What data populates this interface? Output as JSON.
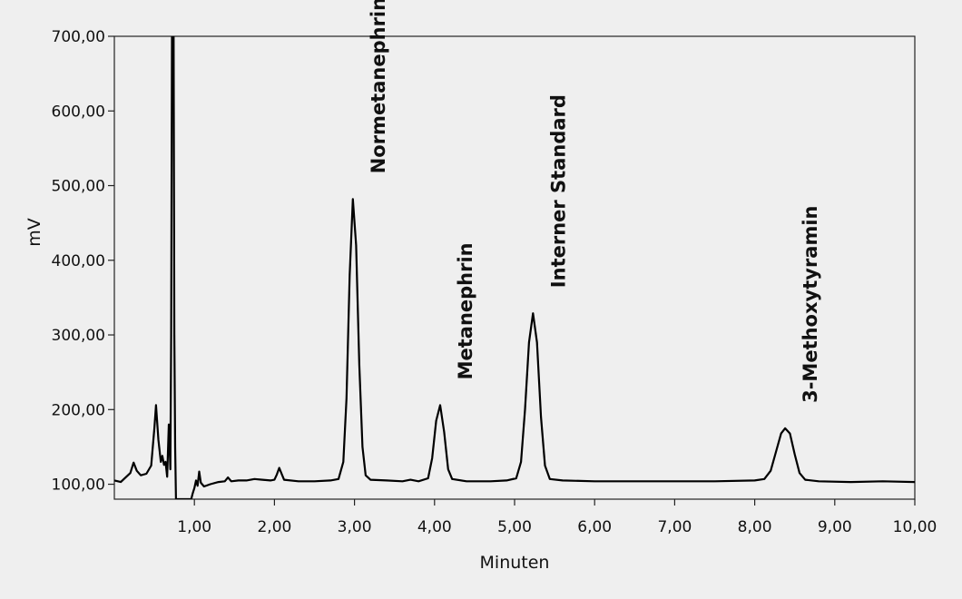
{
  "chart_data": {
    "type": "line",
    "title": "",
    "xlabel": "Minuten",
    "ylabel": "mV",
    "xlim": [
      0,
      10
    ],
    "ylim": [
      80,
      700
    ],
    "x_ticks": [
      "1,00",
      "2,00",
      "3,00",
      "4,00",
      "5,00",
      "6,00",
      "7,00",
      "8,00",
      "9,00",
      "10,00"
    ],
    "y_ticks": [
      "100,00",
      "200,00",
      "300,00",
      "400,00",
      "500,00",
      "600,00",
      "700,00"
    ],
    "grid": false,
    "line_color": "#000000",
    "baseline": 104,
    "peaks": [
      {
        "label": "Normetanephrin",
        "x": 2.98,
        "y": 482
      },
      {
        "label": "Metanephrin",
        "x": 4.07,
        "y": 206
      },
      {
        "label": "Interner Standard",
        "x": 5.23,
        "y": 329
      },
      {
        "label": "3-Methoxytyramin",
        "x": 8.38,
        "y": 175
      }
    ],
    "series": [
      {
        "values": [
          [
            0.0,
            105
          ],
          [
            0.08,
            103
          ],
          [
            0.15,
            110
          ],
          [
            0.2,
            115
          ],
          [
            0.24,
            129
          ],
          [
            0.28,
            118
          ],
          [
            0.33,
            112
          ],
          [
            0.4,
            114
          ],
          [
            0.46,
            125
          ],
          [
            0.5,
            175
          ],
          [
            0.52,
            206
          ],
          [
            0.55,
            160
          ],
          [
            0.58,
            130
          ],
          [
            0.6,
            138
          ],
          [
            0.62,
            126
          ],
          [
            0.64,
            130
          ],
          [
            0.66,
            110
          ],
          [
            0.68,
            180
          ],
          [
            0.7,
            120
          ],
          [
            0.71,
            300
          ],
          [
            0.72,
            700
          ],
          [
            0.74,
            700
          ],
          [
            0.75,
            300
          ],
          [
            0.76,
            150
          ],
          [
            0.77,
            80
          ],
          [
            0.96,
            80
          ],
          [
            0.98,
            88
          ],
          [
            1.0,
            95
          ],
          [
            1.02,
            105
          ],
          [
            1.04,
            98
          ],
          [
            1.06,
            117
          ],
          [
            1.08,
            102
          ],
          [
            1.12,
            97
          ],
          [
            1.2,
            100
          ],
          [
            1.3,
            103
          ],
          [
            1.38,
            104
          ],
          [
            1.42,
            109
          ],
          [
            1.46,
            104
          ],
          [
            1.55,
            105
          ],
          [
            1.65,
            105
          ],
          [
            1.75,
            107
          ],
          [
            1.85,
            106
          ],
          [
            1.95,
            105
          ],
          [
            2.0,
            106
          ],
          [
            2.03,
            113
          ],
          [
            2.06,
            122
          ],
          [
            2.09,
            114
          ],
          [
            2.12,
            106
          ],
          [
            2.3,
            104
          ],
          [
            2.5,
            104
          ],
          [
            2.7,
            105
          ],
          [
            2.8,
            107
          ],
          [
            2.86,
            130
          ],
          [
            2.9,
            215
          ],
          [
            2.94,
            380
          ],
          [
            2.98,
            482
          ],
          [
            3.02,
            420
          ],
          [
            3.06,
            260
          ],
          [
            3.1,
            150
          ],
          [
            3.14,
            112
          ],
          [
            3.2,
            106
          ],
          [
            3.4,
            105
          ],
          [
            3.6,
            104
          ],
          [
            3.7,
            106
          ],
          [
            3.8,
            104
          ],
          [
            3.92,
            108
          ],
          [
            3.97,
            135
          ],
          [
            4.02,
            185
          ],
          [
            4.07,
            206
          ],
          [
            4.12,
            170
          ],
          [
            4.17,
            120
          ],
          [
            4.22,
            107
          ],
          [
            4.4,
            104
          ],
          [
            4.7,
            104
          ],
          [
            4.9,
            105
          ],
          [
            5.02,
            108
          ],
          [
            5.08,
            130
          ],
          [
            5.13,
            200
          ],
          [
            5.18,
            290
          ],
          [
            5.23,
            329
          ],
          [
            5.28,
            290
          ],
          [
            5.33,
            190
          ],
          [
            5.38,
            125
          ],
          [
            5.44,
            107
          ],
          [
            5.6,
            105
          ],
          [
            6.0,
            104
          ],
          [
            6.5,
            104
          ],
          [
            7.0,
            104
          ],
          [
            7.5,
            104
          ],
          [
            8.0,
            105
          ],
          [
            8.12,
            107
          ],
          [
            8.2,
            118
          ],
          [
            8.27,
            145
          ],
          [
            8.33,
            168
          ],
          [
            8.38,
            175
          ],
          [
            8.44,
            168
          ],
          [
            8.5,
            140
          ],
          [
            8.56,
            115
          ],
          [
            8.63,
            106
          ],
          [
            8.8,
            104
          ],
          [
            9.2,
            103
          ],
          [
            9.6,
            104
          ],
          [
            10.0,
            103
          ]
        ]
      }
    ]
  }
}
